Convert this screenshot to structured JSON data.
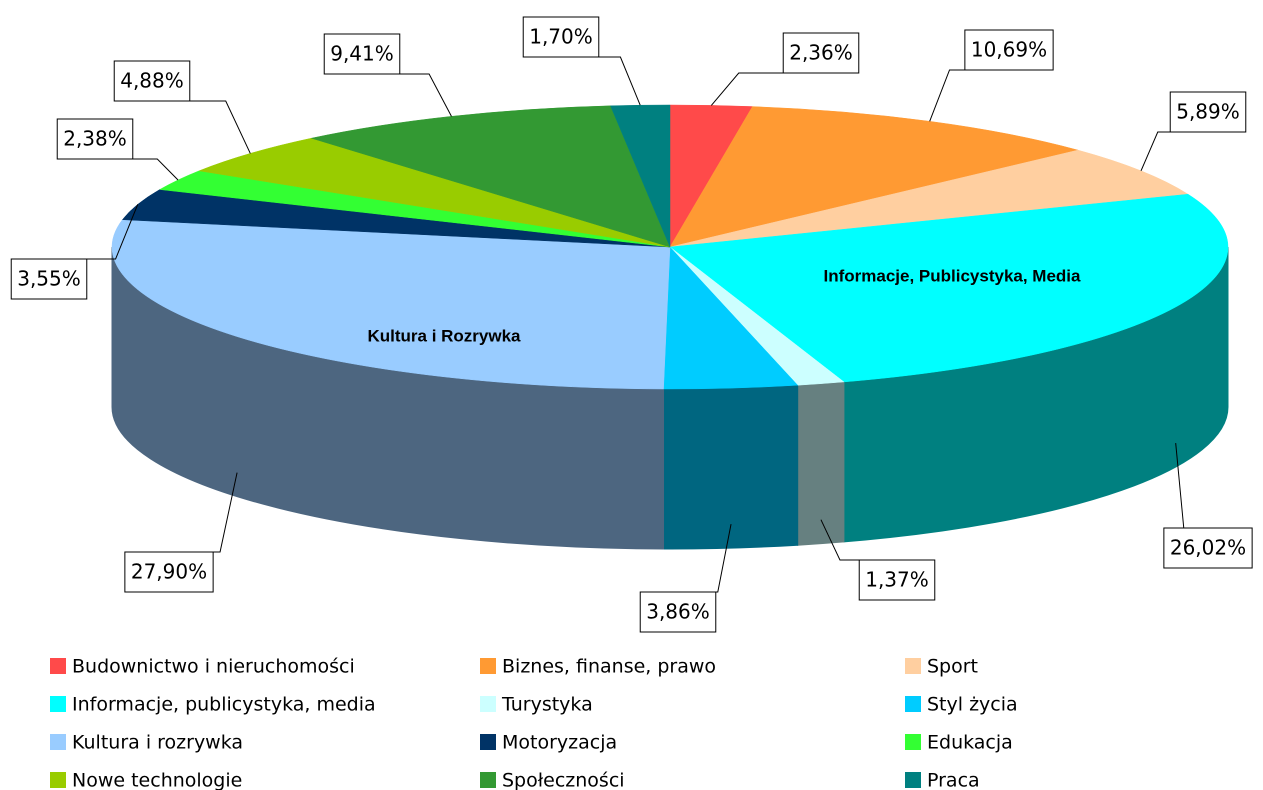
{
  "chart_data": {
    "type": "pie",
    "categories": [
      "Budownictwo i nieruchomości",
      "Biznes, finanse, prawo",
      "Sport",
      "Informacje, publicystyka, media",
      "Turystyka",
      "Styl życia",
      "Kultura i rozrywka",
      "Motoryzacja",
      "Edukacja",
      "Nowe technologie",
      "Społeczności",
      "Praca"
    ],
    "values": [
      2.36,
      10.69,
      5.89,
      26.02,
      1.37,
      3.86,
      27.9,
      3.55,
      2.38,
      4.88,
      9.41,
      1.7
    ],
    "value_labels": [
      "2,36%",
      "10,69%",
      "5,89%",
      "26,02%",
      "1,37%",
      "3,86%",
      "27,90%",
      "3,55%",
      "2,38%",
      "4,88%",
      "9,41%",
      "1,70%"
    ],
    "colors": [
      "#ff4a4a",
      "#ff9a33",
      "#ffcfa0",
      "#00ffff",
      "#ccffff",
      "#00ccff",
      "#99ccff",
      "#003366",
      "#33ff33",
      "#99cc00",
      "#339933",
      "#008080"
    ],
    "annotations": [
      "Informacje, Publicystyka, Media",
      "Kultura i Rozrywka"
    ],
    "legend": "bottom"
  }
}
